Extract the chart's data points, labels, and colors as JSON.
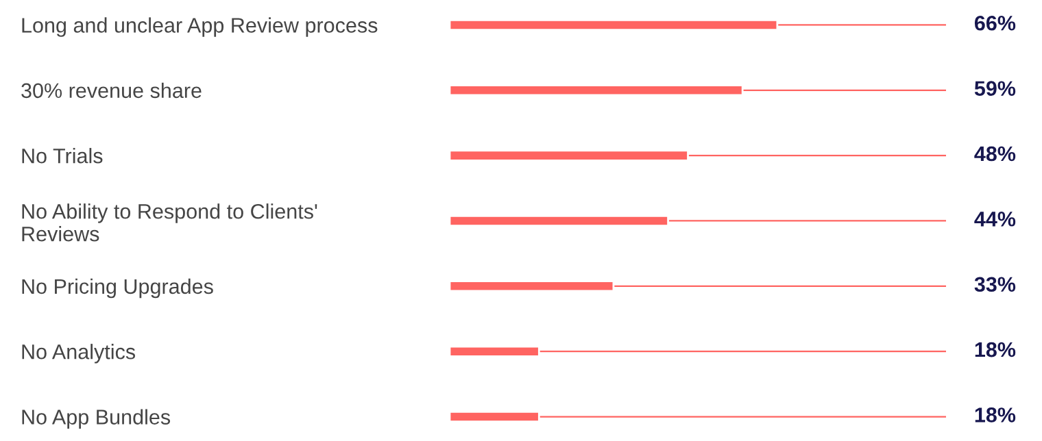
{
  "chart_data": {
    "type": "bar",
    "orientation": "horizontal",
    "categories": [
      "Long and unclear App Review process",
      "30% revenue share",
      "No Trials",
      "No Ability to Respond to Clients'\nReviews",
      "No Pricing Upgrades",
      "No Analytics",
      "No App Bundles"
    ],
    "values": [
      66,
      59,
      48,
      44,
      33,
      18,
      18
    ],
    "value_labels": [
      "66%",
      "59%",
      "48%",
      "44%",
      "33%",
      "18%",
      "18%"
    ],
    "color": "#ff6461",
    "xlim": [
      0,
      100
    ],
    "tick_labels": "y",
    "grid": false,
    "legend": false
  }
}
